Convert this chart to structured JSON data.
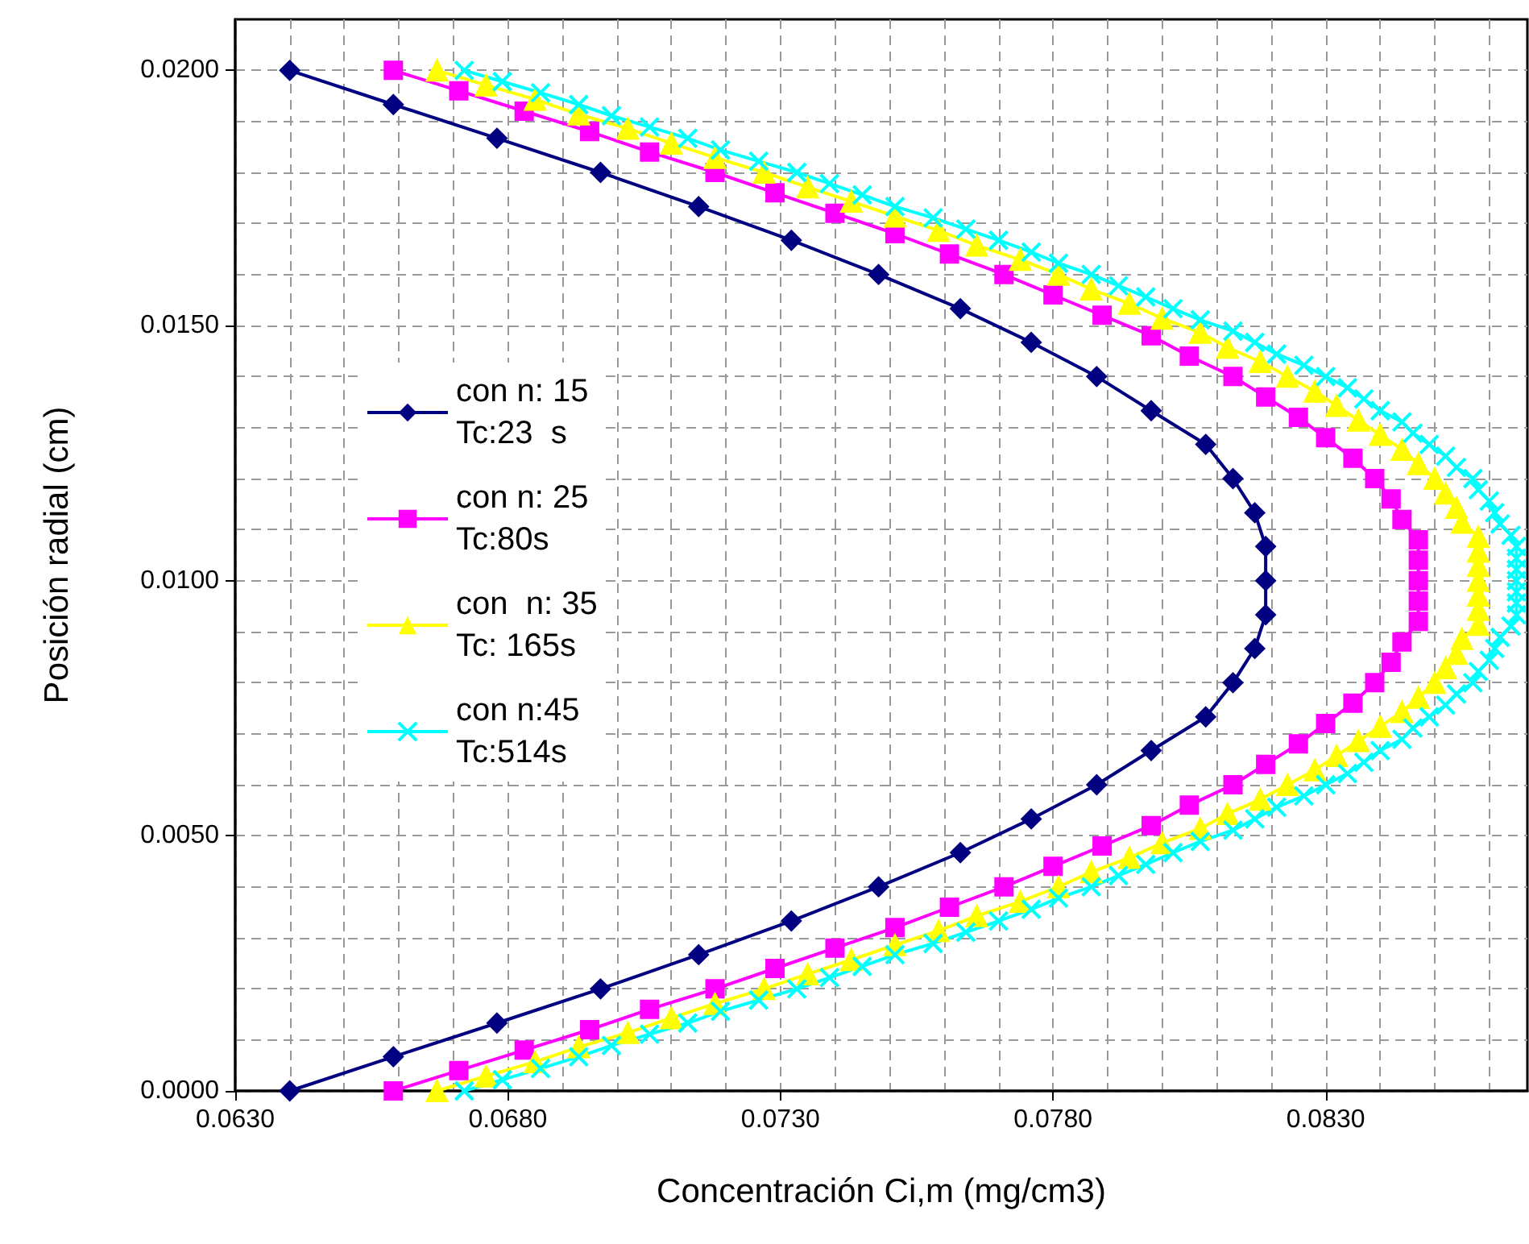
{
  "chart_data": {
    "type": "line",
    "xlabel": "Concentración Ci,m (mg/cm3)",
    "ylabel": "Posición radial (cm)",
    "xlim": [
      0.063,
      0.0867
    ],
    "ylim": [
      0,
      0.021
    ],
    "xticks": [
      {
        "value": 0.063,
        "label": "0.0630"
      },
      {
        "value": 0.068,
        "label": "0.0680"
      },
      {
        "value": 0.073,
        "label": "0.0730"
      },
      {
        "value": 0.078,
        "label": "0.0780"
      },
      {
        "value": 0.083,
        "label": "0.0830"
      }
    ],
    "yticks": [
      {
        "value": 0,
        "label": "0.0000"
      },
      {
        "value": 0.005,
        "label": "0.0050"
      },
      {
        "value": 0.01,
        "label": "0.0100"
      },
      {
        "value": 0.015,
        "label": "0.0150"
      },
      {
        "value": 0.02,
        "label": "0.0200"
      }
    ],
    "grid": true,
    "legend": "left",
    "line_style": "solid",
    "series": [
      {
        "name": "con n: 15\nTc:23  s",
        "color": "#000080",
        "marker": "diamond",
        "x": [
          0.064,
          0.0659,
          0.0678,
          0.0697,
          0.0715,
          0.0732,
          0.0748,
          0.0763,
          0.0776,
          0.0788,
          0.0798,
          0.0808,
          0.0813,
          0.0817,
          0.0819,
          0.0819,
          0.0819,
          0.0817,
          0.0813,
          0.0808,
          0.0798,
          0.0788,
          0.0776,
          0.0763,
          0.0748,
          0.0732,
          0.0715,
          0.0697,
          0.0678,
          0.0659,
          0.064
        ],
        "values": [
          0,
          0.00067,
          0.00133,
          0.002,
          0.00267,
          0.00333,
          0.004,
          0.00467,
          0.00533,
          0.006,
          0.00667,
          0.00733,
          0.008,
          0.00867,
          0.00933,
          0.01,
          0.01067,
          0.01133,
          0.012,
          0.01267,
          0.01333,
          0.014,
          0.01467,
          0.01533,
          0.016,
          0.01667,
          0.01733,
          0.018,
          0.01867,
          0.01933,
          0.02
        ]
      },
      {
        "name": "con n: 25\nTc:80s",
        "color": "#ff00ff",
        "marker": "square",
        "x": [
          0.0659,
          0.0671,
          0.0683,
          0.0695,
          0.0706,
          0.0718,
          0.0729,
          0.074,
          0.0751,
          0.0761,
          0.0771,
          0.078,
          0.0789,
          0.0798,
          0.0805,
          0.0813,
          0.0819,
          0.0825,
          0.083,
          0.0835,
          0.0839,
          0.0842,
          0.0844,
          0.0847,
          0.0847,
          0.0847,
          0.0847,
          0.0847,
          0.0844,
          0.0842,
          0.0839,
          0.0835,
          0.083,
          0.0825,
          0.0819,
          0.0813,
          0.0805,
          0.0798,
          0.0789,
          0.078,
          0.0771,
          0.0761,
          0.0751,
          0.074,
          0.0729,
          0.0718,
          0.0706,
          0.0695,
          0.0683,
          0.0671,
          0.0659
        ],
        "values": [
          0,
          0.0004,
          0.0008,
          0.0012,
          0.0016,
          0.002,
          0.0024,
          0.0028,
          0.0032,
          0.0036,
          0.004,
          0.0044,
          0.0048,
          0.0052,
          0.0056,
          0.006,
          0.0064,
          0.0068,
          0.0072,
          0.0076,
          0.008,
          0.0084,
          0.0088,
          0.0092,
          0.0096,
          0.01,
          0.0104,
          0.0108,
          0.0112,
          0.0116,
          0.012,
          0.0124,
          0.0128,
          0.0132,
          0.0136,
          0.014,
          0.0144,
          0.0148,
          0.0152,
          0.0156,
          0.016,
          0.0164,
          0.0168,
          0.0172,
          0.0176,
          0.018,
          0.0184,
          0.0188,
          0.0192,
          0.0196,
          0.02
        ]
      },
      {
        "name": "con  n: 35\nTc: 165s",
        "color": "#ffff00",
        "marker": "triangle",
        "x": [
          0.0667,
          0.0676,
          0.0685,
          0.0693,
          0.0702,
          0.071,
          0.0718,
          0.0727,
          0.0735,
          0.0743,
          0.0751,
          0.0759,
          0.0766,
          0.0774,
          0.0781,
          0.0787,
          0.0794,
          0.08,
          0.0807,
          0.0812,
          0.0818,
          0.0823,
          0.0828,
          0.0832,
          0.0836,
          0.084,
          0.0844,
          0.0847,
          0.085,
          0.0852,
          0.0854,
          0.0855,
          0.0858,
          0.0858,
          0.0858,
          0.0858,
          0.0858,
          0.0858,
          0.0858,
          0.0855,
          0.0854,
          0.0852,
          0.085,
          0.0847,
          0.0844,
          0.084,
          0.0836,
          0.0832,
          0.0828,
          0.0823,
          0.0818,
          0.0812,
          0.0807,
          0.08,
          0.0794,
          0.0787,
          0.0781,
          0.0774,
          0.0766,
          0.0759,
          0.0751,
          0.0743,
          0.0735,
          0.0727,
          0.0718,
          0.071,
          0.0702,
          0.0693,
          0.0685,
          0.0676,
          0.0667
        ],
        "values": [
          0,
          0.00029,
          0.00057,
          0.00086,
          0.00114,
          0.00143,
          0.00171,
          0.002,
          0.00229,
          0.00257,
          0.00286,
          0.00314,
          0.00343,
          0.00371,
          0.004,
          0.00429,
          0.00457,
          0.00486,
          0.00514,
          0.00543,
          0.00571,
          0.006,
          0.00629,
          0.00657,
          0.00686,
          0.00714,
          0.00743,
          0.00771,
          0.008,
          0.00829,
          0.00857,
          0.00886,
          0.00914,
          0.00943,
          0.00971,
          0.01,
          0.01029,
          0.01057,
          0.01086,
          0.01114,
          0.01143,
          0.01171,
          0.012,
          0.01229,
          0.01257,
          0.01286,
          0.01314,
          0.01343,
          0.01371,
          0.014,
          0.01429,
          0.01457,
          0.01486,
          0.01514,
          0.01543,
          0.01571,
          0.016,
          0.01629,
          0.01657,
          0.01686,
          0.01714,
          0.01743,
          0.01771,
          0.018,
          0.01829,
          0.01857,
          0.01886,
          0.01914,
          0.01943,
          0.01971,
          0.02
        ]
      },
      {
        "name": "con n:45\nTc:514s",
        "color": "#00ffff",
        "marker": "cross",
        "x": [
          0.0672,
          0.0679,
          0.0686,
          0.0693,
          0.0699,
          0.0706,
          0.0713,
          0.0719,
          0.0726,
          0.0733,
          0.0739,
          0.0745,
          0.0751,
          0.0758,
          0.0764,
          0.077,
          0.0776,
          0.0781,
          0.0787,
          0.0792,
          0.0797,
          0.0802,
          0.0807,
          0.0813,
          0.0817,
          0.0821,
          0.0826,
          0.083,
          0.0834,
          0.0837,
          0.084,
          0.0844,
          0.0846,
          0.0849,
          0.0852,
          0.0854,
          0.0857,
          0.0858,
          0.086,
          0.0861,
          0.0862,
          0.0864,
          0.0865,
          0.0865,
          0.0865,
          0.0865,
          0.0865,
          0.0865,
          0.0865,
          0.0864,
          0.0862,
          0.0861,
          0.086,
          0.0858,
          0.0857,
          0.0854,
          0.0852,
          0.0849,
          0.0846,
          0.0844,
          0.084,
          0.0837,
          0.0834,
          0.083,
          0.0826,
          0.0821,
          0.0817,
          0.0813,
          0.0807,
          0.0802,
          0.0797,
          0.0792,
          0.0787,
          0.0781,
          0.0776,
          0.077,
          0.0764,
          0.0758,
          0.0751,
          0.0745,
          0.0739,
          0.0733,
          0.0726,
          0.0719,
          0.0713,
          0.0706,
          0.0699,
          0.0693,
          0.0686,
          0.0679,
          0.0672
        ],
        "values": [
          0,
          0.00022,
          0.00044,
          0.00067,
          0.00089,
          0.00111,
          0.00133,
          0.00156,
          0.00178,
          0.002,
          0.00222,
          0.00244,
          0.00267,
          0.00289,
          0.00311,
          0.00333,
          0.00356,
          0.00378,
          0.004,
          0.00422,
          0.00444,
          0.00467,
          0.00489,
          0.00511,
          0.00533,
          0.00556,
          0.00578,
          0.006,
          0.00622,
          0.00644,
          0.00667,
          0.00689,
          0.00711,
          0.00733,
          0.00756,
          0.00778,
          0.008,
          0.00822,
          0.00844,
          0.00867,
          0.00889,
          0.00911,
          0.00933,
          0.00956,
          0.00978,
          0.01,
          0.01022,
          0.01044,
          0.01067,
          0.01089,
          0.01111,
          0.01133,
          0.01156,
          0.01178,
          0.012,
          0.01222,
          0.01244,
          0.01267,
          0.01289,
          0.01311,
          0.01333,
          0.01356,
          0.01378,
          0.014,
          0.01422,
          0.01444,
          0.01467,
          0.01489,
          0.01511,
          0.01533,
          0.01556,
          0.01578,
          0.016,
          0.01622,
          0.01644,
          0.01667,
          0.01689,
          0.01711,
          0.01733,
          0.01756,
          0.01778,
          0.018,
          0.01822,
          0.01844,
          0.01867,
          0.01889,
          0.01911,
          0.01933,
          0.01956,
          0.01978,
          0.02
        ]
      }
    ]
  }
}
